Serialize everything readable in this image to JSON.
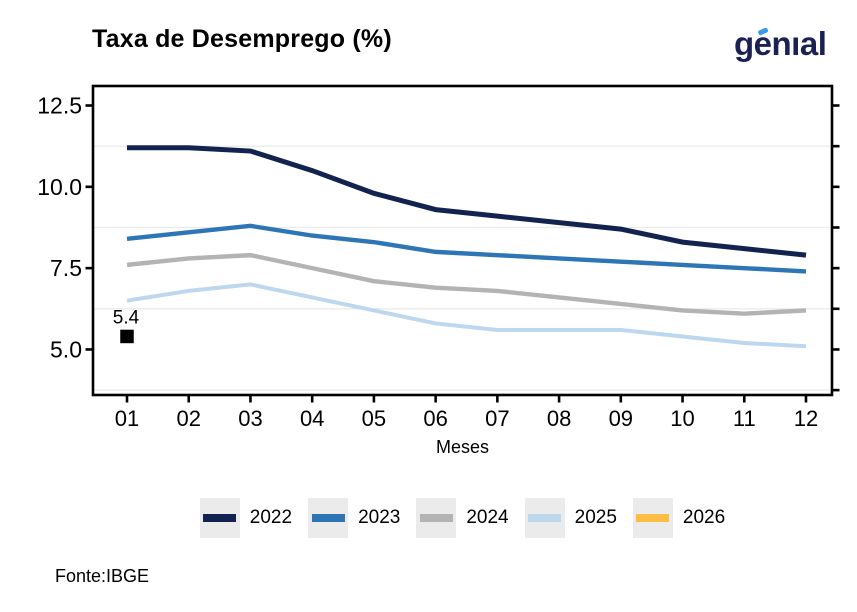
{
  "header": {
    "title": "Taxa de Desemprego (%)",
    "logo_text": "genıal"
  },
  "colors": {
    "logo_navy": "#1b2153",
    "logo_accent": "#3b9af0",
    "legend_key_bg": "#ebebeb",
    "grid_minor": "#ebebeb",
    "axis": "#000000"
  },
  "chart_data": {
    "type": "line",
    "title": "Taxa de Desemprego (%)",
    "xlabel": "Meses",
    "ylabel": "",
    "categories": [
      "01",
      "02",
      "03",
      "04",
      "05",
      "06",
      "07",
      "08",
      "09",
      "10",
      "11",
      "12"
    ],
    "ylim": [
      3.6,
      13.1
    ],
    "yticks": {
      "values": [
        5.0,
        7.5,
        10.0,
        12.5
      ],
      "labels": [
        "5.0",
        "7.5",
        "10.0",
        "12.5"
      ]
    },
    "right_axis_ticks": [
      3.75,
      5.0,
      6.25,
      7.5,
      8.75,
      10.0,
      11.25,
      12.5
    ],
    "minor_gridlines": [
      3.75,
      6.25,
      8.75,
      11.25
    ],
    "grid": "minor horizontal only",
    "legend_position": "bottom-center",
    "series": [
      {
        "name": "2022",
        "color": "#13234f",
        "values": [
          11.2,
          11.2,
          11.1,
          10.5,
          9.8,
          9.3,
          9.1,
          8.9,
          8.7,
          8.3,
          8.1,
          7.9
        ]
      },
      {
        "name": "2023",
        "color": "#2e75b6",
        "values": [
          8.4,
          8.6,
          8.8,
          8.5,
          8.3,
          8.0,
          7.9,
          7.8,
          7.7,
          7.6,
          7.5,
          7.4
        ]
      },
      {
        "name": "2024",
        "color": "#b3b3b3",
        "values": [
          7.6,
          7.8,
          7.9,
          7.5,
          7.1,
          6.9,
          6.8,
          6.6,
          6.4,
          6.2,
          6.1,
          6.2
        ]
      },
      {
        "name": "2025",
        "color": "#bdd7ee",
        "values": [
          6.5,
          6.8,
          7.0,
          6.6,
          6.2,
          5.8,
          5.6,
          5.6,
          5.6,
          5.4,
          5.2,
          5.1
        ]
      },
      {
        "name": "2026",
        "color": "#fbbd42",
        "marker": "square",
        "marker_color": "#000000",
        "values": [
          5.4
        ]
      }
    ],
    "annotation": {
      "text": "5.4",
      "month": "01",
      "value": 5.4
    }
  },
  "footer": {
    "source": "Fonte:IBGE"
  }
}
